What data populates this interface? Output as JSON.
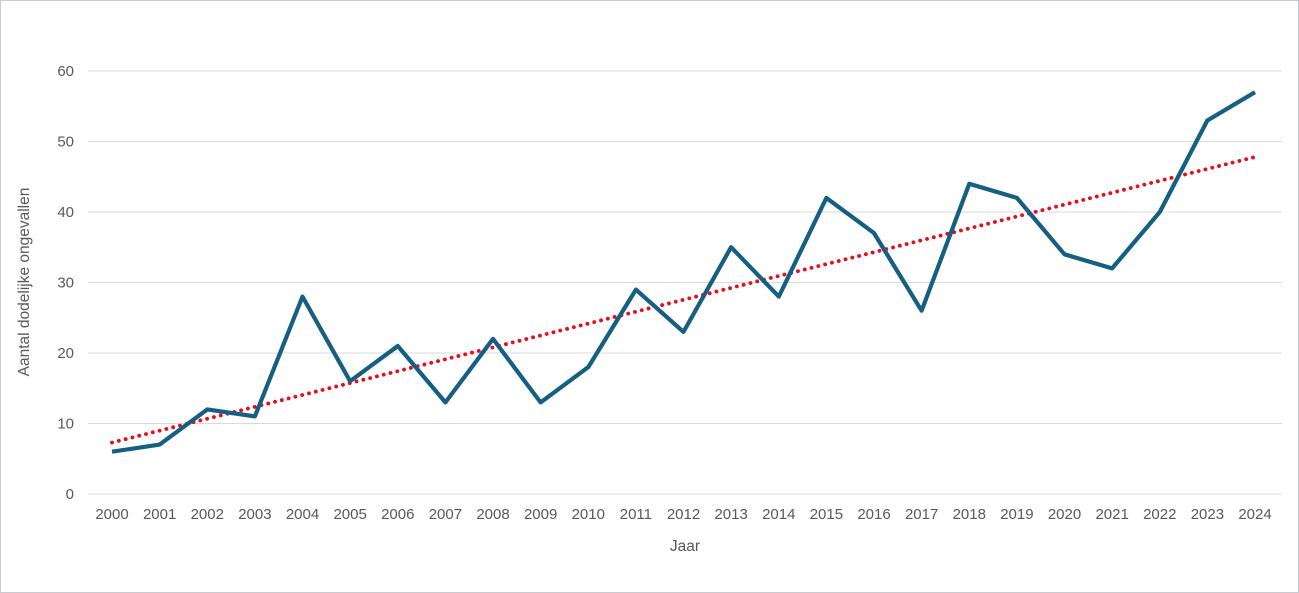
{
  "chart_data": {
    "type": "line",
    "title": "",
    "xlabel": "Jaar",
    "ylabel": "Aantal dodelijke ongevallen",
    "categories": [
      "2000",
      "2001",
      "2002",
      "2003",
      "2004",
      "2005",
      "2006",
      "2007",
      "2008",
      "2009",
      "2010",
      "2011",
      "2012",
      "2013",
      "2014",
      "2015",
      "2016",
      "2017",
      "2018",
      "2019",
      "2020",
      "2021",
      "2022",
      "2023",
      "2024"
    ],
    "values": [
      6,
      7,
      12,
      11,
      28,
      16,
      21,
      13,
      22,
      13,
      18,
      29,
      23,
      35,
      28,
      42,
      37,
      26,
      44,
      42,
      34,
      32,
      40,
      53,
      57
    ],
    "trendline": {
      "type": "linear",
      "start_value": 7.3,
      "end_value": 47.8,
      "style": "dotted",
      "color": "#e2101d"
    },
    "ylim": [
      0,
      60
    ],
    "yticks": [
      0,
      10,
      20,
      30,
      40,
      50,
      60
    ],
    "grid": "horizontal",
    "legend": "none",
    "series_color": "#156082",
    "gridline_color": "#d9d9d9",
    "tick_color": "#595959"
  }
}
